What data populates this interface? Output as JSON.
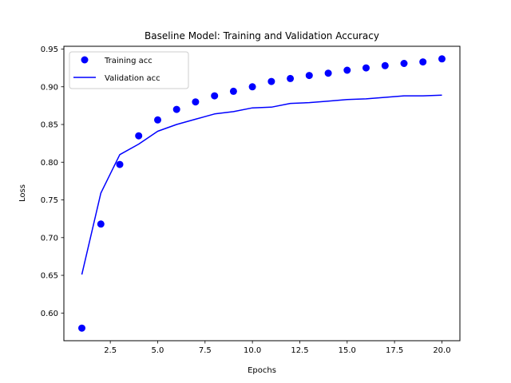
{
  "chart_data": {
    "type": "line",
    "title": "Baseline Model: Training and Validation Accuracy",
    "xlabel": "Epochs",
    "ylabel": "Loss",
    "xlim": [
      0.05,
      20.95
    ],
    "ylim": [
      0.5633,
      0.9537
    ],
    "x": [
      1,
      2,
      3,
      4,
      5,
      6,
      7,
      8,
      9,
      10,
      11,
      12,
      13,
      14,
      15,
      16,
      17,
      18,
      19,
      20
    ],
    "series": [
      {
        "name": "Training acc",
        "style": "markers",
        "color": "#0000ff",
        "values": [
          0.58,
          0.718,
          0.797,
          0.835,
          0.856,
          0.87,
          0.88,
          0.888,
          0.894,
          0.9,
          0.907,
          0.911,
          0.915,
          0.918,
          0.922,
          0.925,
          0.928,
          0.931,
          0.933,
          0.937
        ]
      },
      {
        "name": "Validation acc",
        "style": "line",
        "color": "#0000ff",
        "values": [
          0.651,
          0.759,
          0.81,
          0.824,
          0.841,
          0.85,
          0.857,
          0.864,
          0.867,
          0.872,
          0.873,
          0.878,
          0.879,
          0.881,
          0.883,
          0.884,
          0.886,
          0.888,
          0.888,
          0.889
        ]
      }
    ],
    "xticks": [
      2.5,
      5.0,
      7.5,
      10.0,
      12.5,
      15.0,
      17.5,
      20.0
    ],
    "xtick_labels": [
      "2.5",
      "5.0",
      "7.5",
      "10.0",
      "12.5",
      "15.0",
      "17.5",
      "20.0"
    ],
    "yticks": [
      0.6,
      0.65,
      0.7,
      0.75,
      0.8,
      0.85,
      0.9,
      0.95
    ],
    "ytick_labels": [
      "0.60",
      "0.65",
      "0.70",
      "0.75",
      "0.80",
      "0.85",
      "0.90",
      "0.95"
    ],
    "legend_position": "top-left",
    "grid": false
  }
}
